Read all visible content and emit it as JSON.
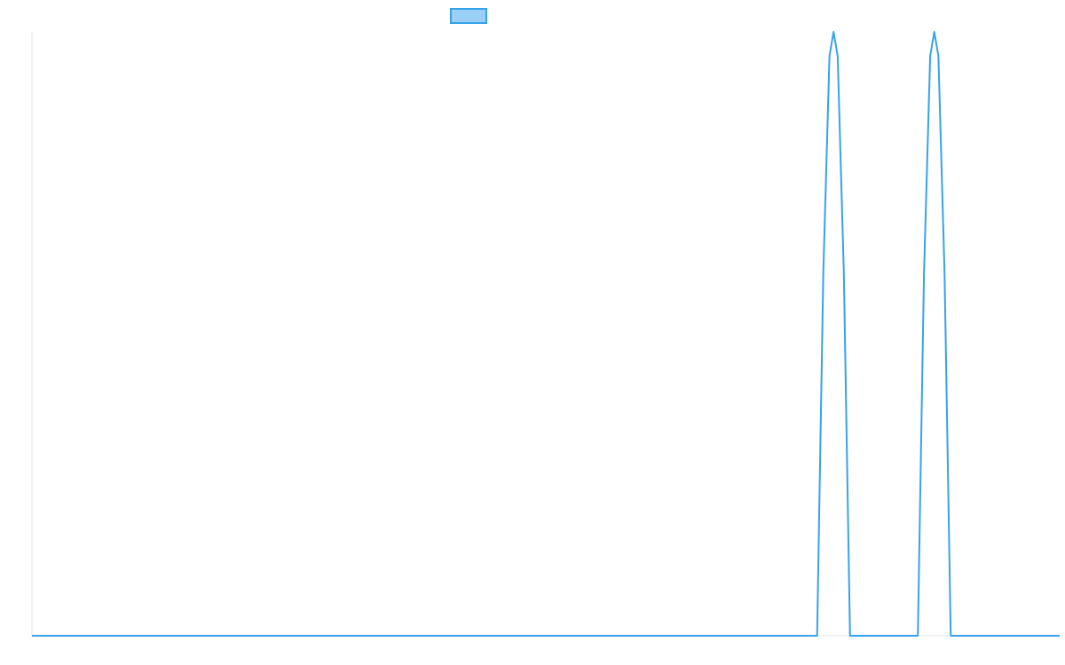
{
  "chart_data": {
    "type": "line",
    "title": "",
    "xlabel": "",
    "ylabel": "",
    "grid": false,
    "legend": "top-center",
    "colors": {
      "line": "#36A2EB",
      "legend_fill": "#9AD0F5",
      "axis": "#E5E5E5"
    },
    "xlim": [
      0,
      1000
    ],
    "ylim": [
      0,
      1
    ],
    "series": [
      {
        "name": "",
        "x": [
          0,
          764,
          770,
          776,
          780,
          784,
          790,
          796,
          834,
          862,
          868,
          874,
          878,
          882,
          888,
          894,
          1000
        ],
        "y": [
          0,
          0,
          0.6,
          0.96,
          1,
          0.96,
          0.6,
          0,
          0,
          0,
          0.6,
          0.96,
          1,
          0.96,
          0.6,
          0,
          0
        ]
      }
    ]
  }
}
